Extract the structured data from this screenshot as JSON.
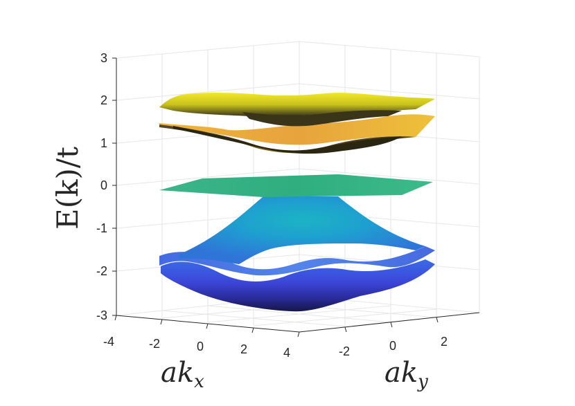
{
  "chart_data": {
    "type": "surface",
    "xlabel": "ak",
    "xlabel_sub": "x",
    "ylabel": "ak",
    "ylabel_sub": "y",
    "zlabel": "E(k)/t",
    "x_ticks": [
      "-4",
      "-2",
      "0",
      "2",
      "4"
    ],
    "y_ticks": [
      "-2",
      "0",
      "2"
    ],
    "z_ticks": [
      "3",
      "2",
      "1",
      "0",
      "-1",
      "-2",
      "-3"
    ],
    "xlim": [
      -4,
      4
    ],
    "ylim": [
      -3.5,
      3.5
    ],
    "zlim": [
      -3,
      3
    ],
    "grid": true,
    "colormap": "parula",
    "bands": [
      {
        "index": 6,
        "min_energy": 0.9,
        "max_energy": 2.05,
        "color": "#e8d71f"
      },
      {
        "index": 5,
        "min_energy": 0.9,
        "max_energy": 1.6,
        "color": "#eaa53a"
      },
      {
        "index": 4,
        "min_energy": 0.0,
        "max_energy": 0.0,
        "color": "#2db27d"
      },
      {
        "index": 3,
        "min_energy": -1.8,
        "max_energy": -0.3,
        "color": "#1aa1c9"
      },
      {
        "index": 2,
        "min_energy": -2.0,
        "max_energy": -1.6,
        "color": "#3b7fe8"
      },
      {
        "index": 1,
        "min_energy": -2.9,
        "max_energy": -1.9,
        "color": "#3b3bd6"
      }
    ]
  }
}
